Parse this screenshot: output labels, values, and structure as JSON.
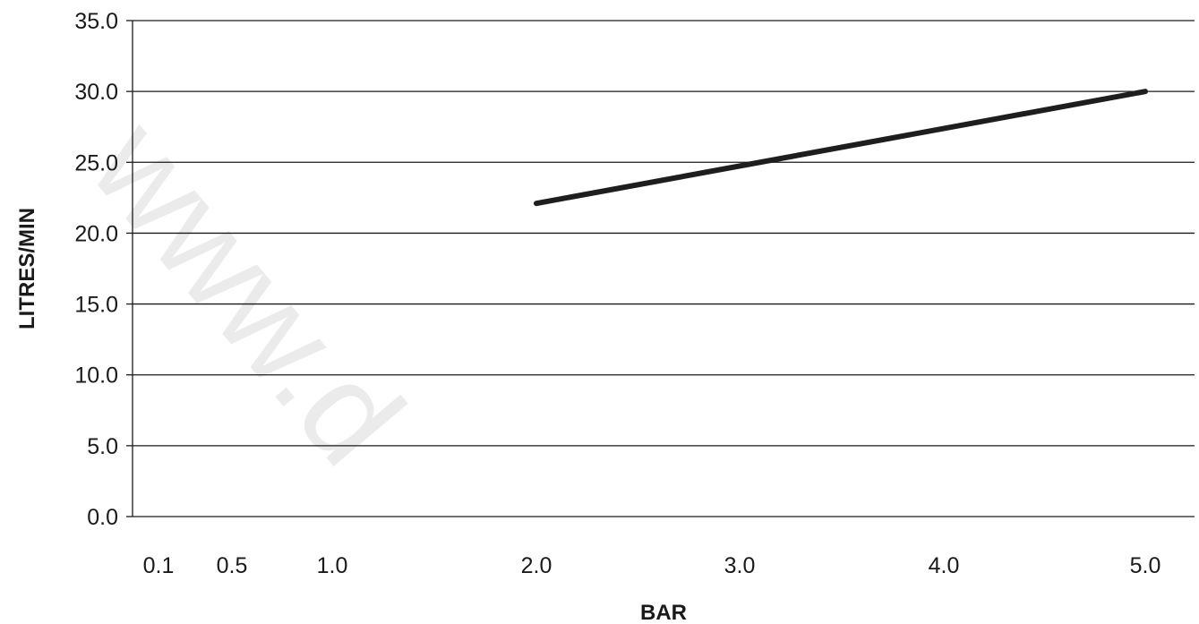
{
  "chart_data": {
    "type": "line",
    "xlabel": "BAR",
    "ylabel": "LITRES/MIN",
    "x_ticks": [
      "0.1",
      "0.5",
      "1.0",
      "2.0",
      "3.0",
      "4.0",
      "5.0"
    ],
    "y_ticks": [
      "0.0",
      "5.0",
      "10.0",
      "15.0",
      "20.0",
      "25.0",
      "30.0",
      "35.0"
    ],
    "ylim": [
      0,
      35
    ],
    "grid": "horizontal",
    "series": [
      {
        "x": [
          "2.0",
          "5.0"
        ],
        "values": [
          22.1,
          30.0
        ]
      }
    ],
    "colors": {
      "line": "#1e1e1e",
      "grid": "#1a1a1a",
      "watermark": "#ebebeb"
    },
    "watermark": "www.d"
  }
}
